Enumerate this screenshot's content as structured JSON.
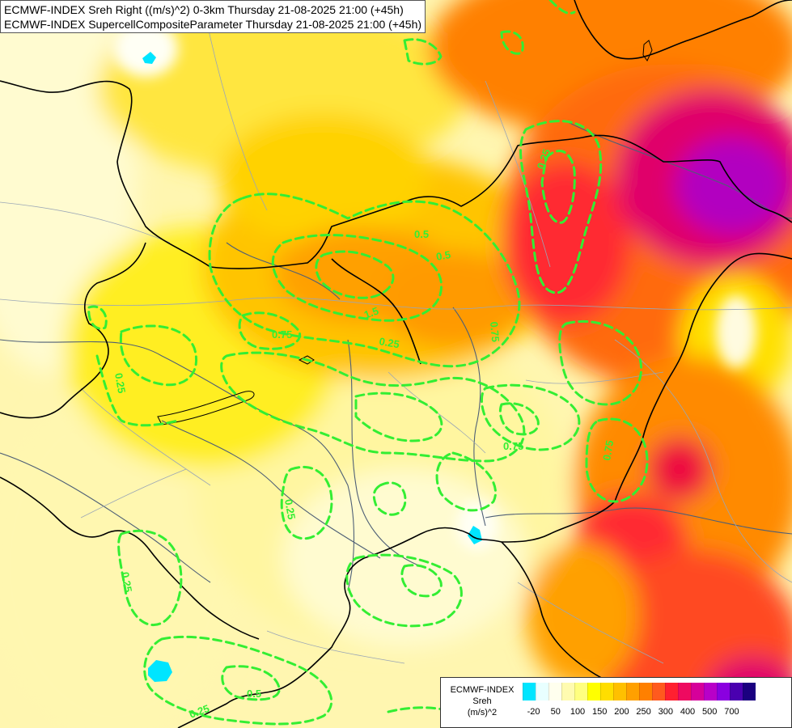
{
  "title_lines": [
    "ECMWF-INDEX Sreh Right ((m/s)^2) 0-3km Thursday 21-08-2025 21:00 (+45h)",
    "ECMWF-INDEX SupercellCompositeParameter Thursday 21-08-2025 21:00 (+45h)"
  ],
  "legend": {
    "title_lines": [
      "ECMWF-INDEX",
      "Sreh",
      "(m/s)^2"
    ],
    "colors": [
      "#00e5ff",
      "#e8ffff",
      "#ffffee",
      "#fffbb0",
      "#ffff80",
      "#ffff00",
      "#ffde00",
      "#ffc000",
      "#ffa000",
      "#ff8000",
      "#ff5a1e",
      "#ff2030",
      "#ee0a60",
      "#d6009a",
      "#b800c8",
      "#8a00e0",
      "#4a00b0",
      "#1a0080"
    ],
    "ticks": [
      "-20",
      "50",
      "100",
      "150",
      "200",
      "250",
      "300",
      "400",
      "500",
      "700"
    ]
  },
  "contour_labels": [
    "0.25",
    "0.5",
    "0.75",
    "1.5",
    "0.25",
    "0.25",
    "0.25",
    "0.25",
    "0.5",
    "0.5",
    "0.75",
    "0.75",
    "0.75",
    "0.25"
  ],
  "colors": {
    "contour": "#33ee33",
    "border": "#000000",
    "river": "#4e5f76",
    "minor_boundary": "#9aa6b6"
  }
}
